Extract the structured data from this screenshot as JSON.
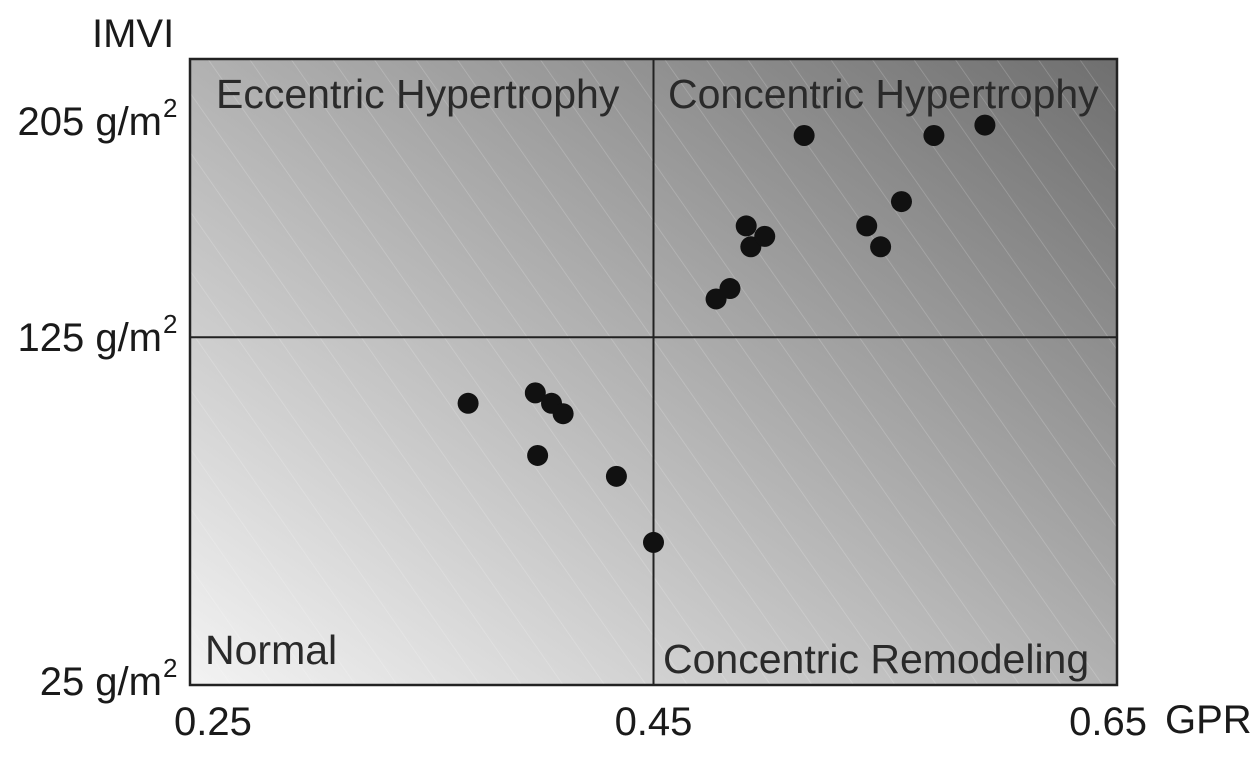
{
  "chart_data": {
    "type": "scatter",
    "title": "",
    "xlabel": "GPR",
    "ylabel": "IMVI",
    "xlim": [
      0.25,
      0.65
    ],
    "ylim": [
      25,
      205
    ],
    "x_ticks": [
      {
        "value": 0.25,
        "label": "0.25"
      },
      {
        "value": 0.45,
        "label": "0.45"
      },
      {
        "value": 0.65,
        "label": "0.65"
      }
    ],
    "y_ticks": [
      {
        "value": 25,
        "label": "25 g/m",
        "sup": "2"
      },
      {
        "value": 125,
        "label": "125 g/m",
        "sup": "2"
      },
      {
        "value": 205,
        "label": "205 g/m",
        "sup": "2"
      }
    ],
    "thresholds": {
      "x": 0.45,
      "y": 125
    },
    "quadrants": {
      "top_left": "Eccentric Hypertrophy",
      "top_right": "Concentric Hypertrophy",
      "bottom_left": "Normal",
      "bottom_right": "Concentric Remodeling"
    },
    "grid": false,
    "legend": "none",
    "marker_color": "#111111",
    "points": [
      {
        "x": 0.37,
        "y": 106
      },
      {
        "x": 0.399,
        "y": 109
      },
      {
        "x": 0.406,
        "y": 106
      },
      {
        "x": 0.411,
        "y": 103
      },
      {
        "x": 0.4,
        "y": 91
      },
      {
        "x": 0.434,
        "y": 85
      },
      {
        "x": 0.45,
        "y": 66
      },
      {
        "x": 0.477,
        "y": 136
      },
      {
        "x": 0.483,
        "y": 139
      },
      {
        "x": 0.49,
        "y": 157
      },
      {
        "x": 0.492,
        "y": 151
      },
      {
        "x": 0.498,
        "y": 154
      },
      {
        "x": 0.515,
        "y": 183
      },
      {
        "x": 0.542,
        "y": 157
      },
      {
        "x": 0.548,
        "y": 151
      },
      {
        "x": 0.557,
        "y": 164
      },
      {
        "x": 0.571,
        "y": 183
      },
      {
        "x": 0.593,
        "y": 186
      }
    ]
  }
}
